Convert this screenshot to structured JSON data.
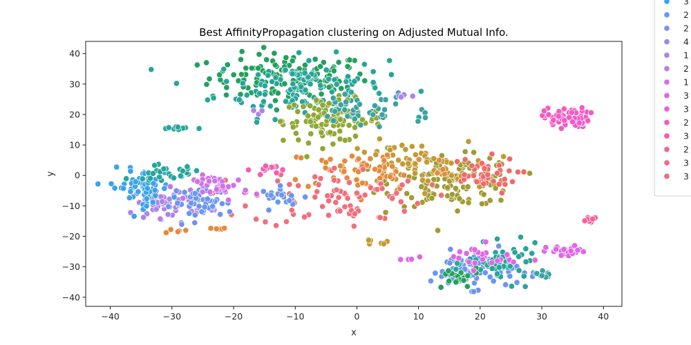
{
  "chart_data": {
    "type": "scatter",
    "title": "Best AffinityPropagation clustering on Adjusted Mutual Info.",
    "xlabel": "x",
    "ylabel": "y",
    "xlim": [
      -44,
      43
    ],
    "ylim": [
      -43,
      44
    ],
    "xticks": [
      -40,
      -30,
      -20,
      -10,
      0,
      10,
      20,
      30,
      40
    ],
    "yticks": [
      -40,
      -30,
      -20,
      -10,
      0,
      10,
      20,
      30,
      40
    ],
    "grid": false,
    "legend_position": "right, outside plot area, partially cropped",
    "legend_entries": [
      {
        "label": "3",
        "color": "#3ba3ec"
      },
      {
        "label": "2",
        "color": "#5d9cf0"
      },
      {
        "label": "2",
        "color": "#7e93ee"
      },
      {
        "label": "4",
        "color": "#9a8be8"
      },
      {
        "label": "1",
        "color": "#ac85e8"
      },
      {
        "label": "2",
        "color": "#bb7ee8"
      },
      {
        "label": "1",
        "color": "#cf72e8"
      },
      {
        "label": "3",
        "color": "#e166e6"
      },
      {
        "label": "3",
        "color": "#ed5fd8"
      },
      {
        "label": "2",
        "color": "#f35ac4"
      },
      {
        "label": "3",
        "color": "#f45db0"
      },
      {
        "label": "2",
        "color": "#f4629e"
      },
      {
        "label": "3",
        "color": "#f3688e"
      },
      {
        "label": "3",
        "color": "#f06f7c"
      }
    ],
    "clusters": [
      {
        "color": "#23a05f",
        "center": [
          -11,
          32
        ],
        "spread": [
          6.5,
          4
        ],
        "n": 130
      },
      {
        "color": "#27a59a",
        "center": [
          -9,
          29
        ],
        "spread": [
          7,
          5
        ],
        "n": 120
      },
      {
        "color": "#8fa832",
        "center": [
          -4,
          18
        ],
        "spread": [
          4,
          3.5
        ],
        "n": 110
      },
      {
        "color": "#3ba3a0",
        "center": [
          0,
          21
        ],
        "spread": [
          4,
          3
        ],
        "n": 40
      },
      {
        "color": "#a19b33",
        "center": [
          16,
          -2
        ],
        "spread": [
          5,
          4
        ],
        "n": 130
      },
      {
        "color": "#c49a32",
        "center": [
          8,
          3
        ],
        "spread": [
          5,
          4
        ],
        "n": 70
      },
      {
        "color": "#e58a3c",
        "center": [
          2,
          2
        ],
        "spread": [
          7,
          3.5
        ],
        "n": 60
      },
      {
        "color": "#f06f7c",
        "center": [
          -3,
          -7
        ],
        "spread": [
          7,
          5
        ],
        "n": 80
      },
      {
        "color": "#ef6a6a",
        "center": [
          20,
          0
        ],
        "spread": [
          3,
          3
        ],
        "n": 40
      },
      {
        "color": "#f35ac4",
        "center": [
          34,
          19
        ],
        "spread": [
          1.8,
          1.6
        ],
        "n": 70
      },
      {
        "color": "#e166e6",
        "center": [
          34,
          -25
        ],
        "spread": [
          1.6,
          0.9
        ],
        "n": 24
      },
      {
        "color": "#f4629e",
        "center": [
          38,
          -15
        ],
        "spread": [
          0.8,
          0.6
        ],
        "n": 10
      },
      {
        "color": "#ac85e8",
        "center": [
          -30,
          -9
        ],
        "spread": [
          3,
          2.5
        ],
        "n": 70
      },
      {
        "color": "#3ba3ec",
        "center": [
          -35,
          -4
        ],
        "spread": [
          2.5,
          3
        ],
        "n": 60
      },
      {
        "color": "#6b96ee",
        "center": [
          -25,
          -9
        ],
        "spread": [
          2.5,
          2.5
        ],
        "n": 45
      },
      {
        "color": "#cf72e8",
        "center": [
          -22,
          -4
        ],
        "spread": [
          2.2,
          2
        ],
        "n": 35
      },
      {
        "color": "#27a59a",
        "center": [
          -31,
          1
        ],
        "spread": [
          3,
          1.2
        ],
        "n": 25
      },
      {
        "color": "#6b96ee",
        "center": [
          -12,
          -7
        ],
        "spread": [
          1.8,
          1.5
        ],
        "n": 20
      },
      {
        "color": "#f45db0",
        "center": [
          -14,
          2
        ],
        "spread": [
          1.5,
          0.8
        ],
        "n": 15
      },
      {
        "color": "#6b96ee",
        "center": [
          19,
          -31
        ],
        "spread": [
          3.5,
          3
        ],
        "n": 90
      },
      {
        "color": "#27a59a",
        "center": [
          24,
          -29
        ],
        "spread": [
          3,
          3
        ],
        "n": 50
      },
      {
        "color": "#23a05f",
        "center": [
          16,
          -34
        ],
        "spread": [
          2,
          2
        ],
        "n": 20
      },
      {
        "color": "#e166e6",
        "center": [
          20,
          -27
        ],
        "spread": [
          3,
          2
        ],
        "n": 25
      },
      {
        "color": "#27a59a",
        "center": [
          -29,
          15.5
        ],
        "spread": [
          1.5,
          0.5
        ],
        "n": 12
      },
      {
        "color": "#3ba3a0",
        "center": [
          31,
          -32
        ],
        "spread": [
          0.8,
          1
        ],
        "n": 8
      },
      {
        "color": "#ac85e8",
        "center": [
          7,
          26
        ],
        "spread": [
          1,
          0.6
        ],
        "n": 6
      },
      {
        "color": "#c49a32",
        "center": [
          3,
          -22
        ],
        "spread": [
          1,
          0.4
        ],
        "n": 6
      },
      {
        "color": "#e58a3c",
        "center": [
          -29,
          -18.5
        ],
        "spread": [
          0.8,
          0.3
        ],
        "n": 5
      },
      {
        "color": "#e58a3c",
        "center": [
          -23,
          -17.5
        ],
        "spread": [
          0.8,
          0.3
        ],
        "n": 5
      },
      {
        "color": "#ac85e8",
        "center": [
          -16,
          21
        ],
        "spread": [
          0.6,
          0.4
        ],
        "n": 3
      },
      {
        "color": "#3ba3a0",
        "center": [
          11,
          19
        ],
        "spread": [
          1,
          1
        ],
        "n": 4
      },
      {
        "color": "#e166e6",
        "center": [
          8,
          -27
        ],
        "spread": [
          1,
          0.3
        ],
        "n": 4
      }
    ]
  }
}
